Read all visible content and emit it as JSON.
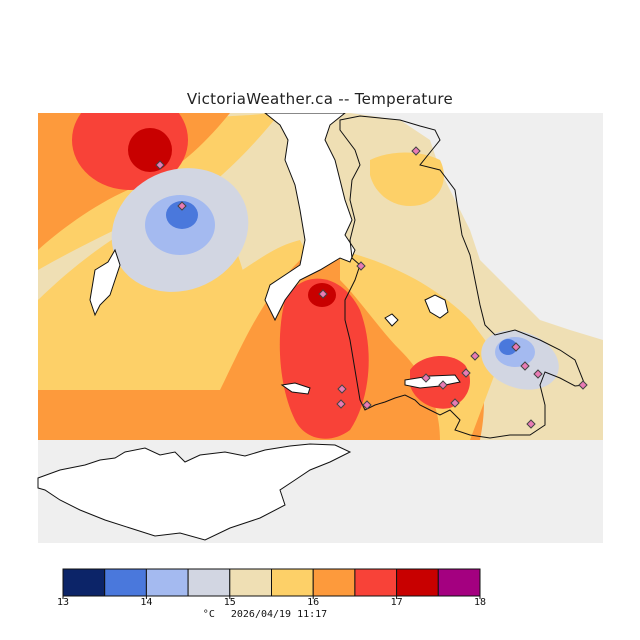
{
  "title": "VictoriaWeather.ca -- Temperature",
  "map": {
    "land_gray": "#efefef",
    "water": "#ffffff",
    "coast": "#111111",
    "stations_count": 18
  },
  "legend": {
    "unit": "°C",
    "timestamp": "2026/04/19 11:17",
    "ticks": [
      "13",
      "14",
      "15",
      "16",
      "17",
      "18"
    ],
    "bins": [
      {
        "range": "13-13.5",
        "color": "#0c2468"
      },
      {
        "range": "13.5-14",
        "color": "#4a78dc"
      },
      {
        "range": "14-14.5",
        "color": "#a4baf0"
      },
      {
        "range": "14.5-15",
        "color": "#d2d6e2"
      },
      {
        "range": "15-15.5",
        "color": "#efdfb4"
      },
      {
        "range": "15.5-16",
        "color": "#fdd068"
      },
      {
        "range": "16-16.5",
        "color": "#fd9a3c"
      },
      {
        "range": "16.5-17",
        "color": "#f84238"
      },
      {
        "range": "17-17.5",
        "color": "#c80000"
      },
      {
        "range": "17.5-18",
        "color": "#a40080"
      }
    ]
  }
}
